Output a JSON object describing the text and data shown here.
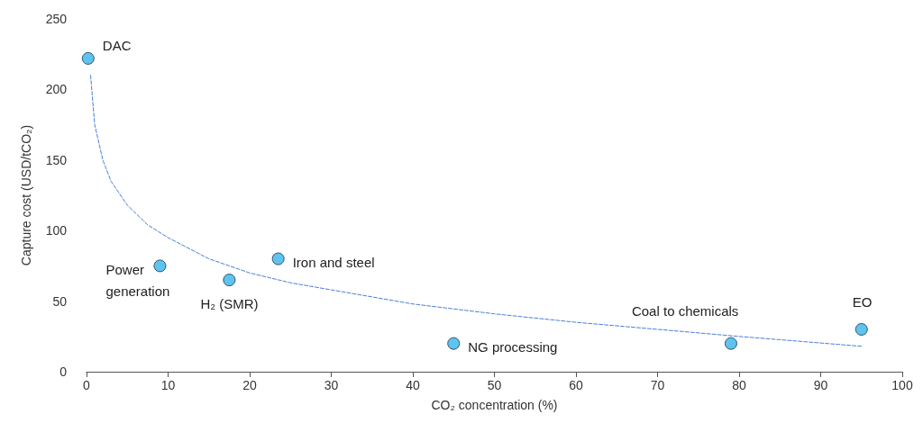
{
  "chart_data": {
    "type": "scatter",
    "xlabel": "CO₂ concentration (%)",
    "ylabel": "Capture cost (USD/tCO₂)",
    "series": [
      {
        "color": "#5ec4ee",
        "marker": "circle",
        "x": [
          0.2,
          9,
          17.5,
          23.5,
          45,
          79,
          95
        ],
        "values": [
          222,
          75,
          65,
          80,
          20,
          20,
          30
        ]
      },
      {
        "type": "line",
        "color": "#4a7fd6",
        "line_style": "dashed",
        "marker": "none",
        "x": [
          0.5,
          1,
          2,
          3,
          5,
          7.5,
          10,
          15,
          20,
          25,
          30,
          40,
          50,
          60,
          70,
          80,
          95
        ],
        "values": [
          210,
          175,
          150,
          135,
          118,
          104,
          95,
          80,
          70,
          63,
          58,
          48,
          41,
          35,
          30,
          25,
          18
        ]
      }
    ],
    "annotations": [
      {
        "text": "DAC",
        "x": 0.2,
        "y": 222
      },
      {
        "text": "Power generation",
        "x": 9,
        "y": 75
      },
      {
        "text": "H₂ (SMR)",
        "x": 17.5,
        "y": 65
      },
      {
        "text": "Iron and steel",
        "x": 23.5,
        "y": 80
      },
      {
        "text": "NG processing",
        "x": 45,
        "y": 20
      },
      {
        "text": "Coal to chemicals",
        "x": 79,
        "y": 20
      },
      {
        "text": "EO",
        "x": 95,
        "y": 30
      }
    ],
    "xlim": [
      0,
      100
    ],
    "xticks": [
      0,
      10,
      20,
      30,
      40,
      50,
      60,
      70,
      80,
      90,
      100
    ],
    "ylim": [
      0,
      250
    ],
    "yticks": [
      0,
      50,
      100,
      150,
      200,
      250
    ],
    "grid": false
  }
}
